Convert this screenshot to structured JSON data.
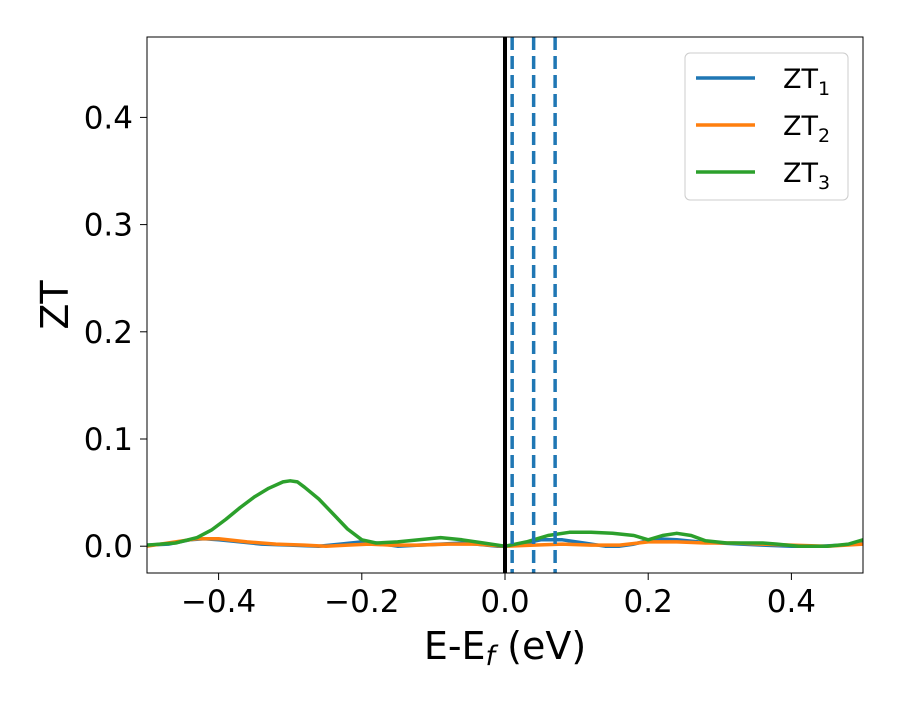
{
  "chart_data": {
    "type": "line",
    "xlabel": "E-E",
    "xlabel_sub": "f",
    "xlabel_unit": " (eV)",
    "ylabel": "ZT",
    "xlim": [
      -0.5,
      0.5
    ],
    "ylim": [
      -0.025,
      0.475
    ],
    "x_ticks": [
      -0.4,
      -0.2,
      0.0,
      0.2,
      0.4
    ],
    "x_tick_labels": [
      "−0.4",
      "−0.2",
      "0.0",
      "0.2",
      "0.4"
    ],
    "y_ticks": [
      0.0,
      0.1,
      0.2,
      0.3,
      0.4
    ],
    "y_tick_labels": [
      "0.0",
      "0.1",
      "0.2",
      "0.3",
      "0.4"
    ],
    "grid": false,
    "legend_position": "top-right",
    "series": [
      {
        "name": "ZT",
        "name_sub": "1",
        "color": "#1f77b4",
        "points": [
          [
            -0.5,
            0.001
          ],
          [
            -0.47,
            0.002
          ],
          [
            -0.44,
            0.006
          ],
          [
            -0.42,
            0.007
          ],
          [
            -0.4,
            0.006
          ],
          [
            -0.37,
            0.004
          ],
          [
            -0.34,
            0.002
          ],
          [
            -0.3,
            0.001
          ],
          [
            -0.26,
            0.0
          ],
          [
            -0.23,
            0.002
          ],
          [
            -0.2,
            0.004
          ],
          [
            -0.18,
            0.003
          ],
          [
            -0.15,
            0.0
          ],
          [
            -0.12,
            0.001
          ],
          [
            -0.09,
            0.002
          ],
          [
            -0.06,
            0.003
          ],
          [
            -0.04,
            0.002
          ],
          [
            -0.01,
            0.0
          ],
          [
            0.0,
            0.0
          ],
          [
            0.02,
            0.002
          ],
          [
            0.05,
            0.006
          ],
          [
            0.08,
            0.006
          ],
          [
            0.11,
            0.003
          ],
          [
            0.14,
            0.0
          ],
          [
            0.16,
            0.0
          ],
          [
            0.18,
            0.002
          ],
          [
            0.21,
            0.007
          ],
          [
            0.24,
            0.006
          ],
          [
            0.27,
            0.004
          ],
          [
            0.3,
            0.003
          ],
          [
            0.33,
            0.002
          ],
          [
            0.36,
            0.001
          ],
          [
            0.4,
            0.0
          ],
          [
            0.44,
            0.0
          ],
          [
            0.47,
            0.001
          ],
          [
            0.5,
            0.003
          ]
        ]
      },
      {
        "name": "ZT",
        "name_sub": "2",
        "color": "#ff7f0e",
        "points": [
          [
            -0.5,
            0.0
          ],
          [
            -0.46,
            0.004
          ],
          [
            -0.43,
            0.007
          ],
          [
            -0.4,
            0.007
          ],
          [
            -0.36,
            0.004
          ],
          [
            -0.32,
            0.002
          ],
          [
            -0.28,
            0.001
          ],
          [
            -0.25,
            0.0
          ],
          [
            -0.22,
            0.001
          ],
          [
            -0.19,
            0.002
          ],
          [
            -0.16,
            0.001
          ],
          [
            -0.12,
            0.001
          ],
          [
            -0.08,
            0.002
          ],
          [
            -0.04,
            0.002
          ],
          [
            0.0,
            0.0
          ],
          [
            0.04,
            0.001
          ],
          [
            0.08,
            0.002
          ],
          [
            0.12,
            0.001
          ],
          [
            0.16,
            0.001
          ],
          [
            0.2,
            0.004
          ],
          [
            0.24,
            0.004
          ],
          [
            0.28,
            0.003
          ],
          [
            0.32,
            0.003
          ],
          [
            0.36,
            0.002
          ],
          [
            0.4,
            0.001
          ],
          [
            0.45,
            0.0
          ],
          [
            0.5,
            0.002
          ]
        ]
      },
      {
        "name": "ZT",
        "name_sub": "3",
        "color": "#2ca02c",
        "points": [
          [
            -0.5,
            0.001
          ],
          [
            -0.46,
            0.003
          ],
          [
            -0.43,
            0.008
          ],
          [
            -0.41,
            0.015
          ],
          [
            -0.39,
            0.025
          ],
          [
            -0.37,
            0.036
          ],
          [
            -0.35,
            0.046
          ],
          [
            -0.33,
            0.054
          ],
          [
            -0.31,
            0.06
          ],
          [
            -0.3,
            0.061
          ],
          [
            -0.29,
            0.06
          ],
          [
            -0.28,
            0.055
          ],
          [
            -0.26,
            0.044
          ],
          [
            -0.24,
            0.03
          ],
          [
            -0.22,
            0.016
          ],
          [
            -0.2,
            0.006
          ],
          [
            -0.18,
            0.003
          ],
          [
            -0.15,
            0.004
          ],
          [
            -0.12,
            0.006
          ],
          [
            -0.09,
            0.008
          ],
          [
            -0.06,
            0.006
          ],
          [
            -0.03,
            0.003
          ],
          [
            0.0,
            0.0
          ],
          [
            0.03,
            0.004
          ],
          [
            0.06,
            0.01
          ],
          [
            0.09,
            0.013
          ],
          [
            0.12,
            0.013
          ],
          [
            0.15,
            0.012
          ],
          [
            0.18,
            0.01
          ],
          [
            0.2,
            0.006
          ],
          [
            0.22,
            0.01
          ],
          [
            0.24,
            0.012
          ],
          [
            0.26,
            0.01
          ],
          [
            0.28,
            0.005
          ],
          [
            0.31,
            0.003
          ],
          [
            0.34,
            0.003
          ],
          [
            0.36,
            0.003
          ],
          [
            0.38,
            0.002
          ],
          [
            0.41,
            0.0
          ],
          [
            0.45,
            0.0
          ],
          [
            0.48,
            0.002
          ],
          [
            0.5,
            0.006
          ]
        ]
      }
    ],
    "vlines": [
      {
        "x": 0.0,
        "color": "#000000",
        "style": "solid"
      },
      {
        "x": 0.01,
        "color": "#1f77b4",
        "style": "dashed"
      },
      {
        "x": 0.04,
        "color": "#1f77b4",
        "style": "dashed"
      },
      {
        "x": 0.07,
        "color": "#1f77b4",
        "style": "dashed"
      }
    ]
  }
}
